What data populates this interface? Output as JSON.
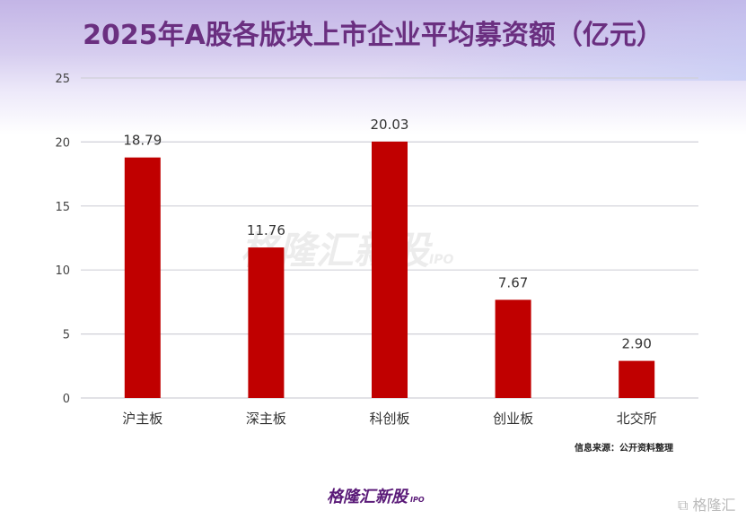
{
  "title": "2025年A股各版块上市企业平均募资额（亿元）",
  "source": "信息来源：公开资料整理",
  "logo": {
    "text": "格隆汇新股",
    "suffix": "IPO"
  },
  "watermark": {
    "text": "格隆汇新股",
    "suffix": "IPO"
  },
  "corner_logo": "格隆汇",
  "colors": {
    "bar": "#c00000",
    "title": "#6a2f80"
  },
  "chart_data": {
    "type": "bar",
    "title": "2025年A股各版块上市企业平均募资额（亿元）",
    "categories": [
      "沪主板",
      "深主板",
      "科创板",
      "创业板",
      "北交所"
    ],
    "values": [
      18.79,
      11.76,
      20.03,
      7.67,
      2.9
    ],
    "labels": [
      "18.79",
      "11.76",
      "20.03",
      "7.67",
      "2.90"
    ],
    "yticks": [
      "0",
      "5",
      "10",
      "15",
      "20",
      "25"
    ],
    "ylim": [
      0,
      25
    ],
    "grid": true,
    "xlabel": "",
    "ylabel": ""
  }
}
